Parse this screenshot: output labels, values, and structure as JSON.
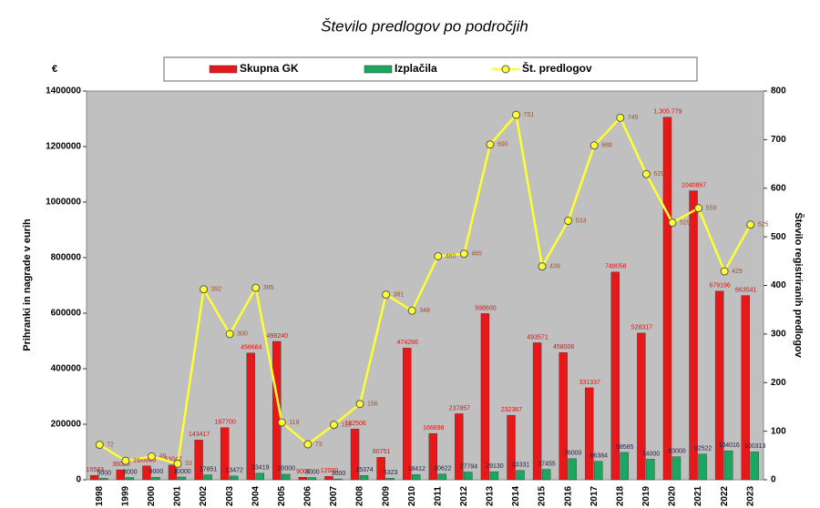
{
  "chart_data": {
    "type": "bar",
    "title": "Število predlogov po področjih",
    "y_unit": "€",
    "ylabel": "Prihranki in nagrade v eurih",
    "y2label": "Število registriranih predlogov",
    "categories": [
      "1998",
      "1999",
      "2000",
      "2001",
      "2002",
      "2003",
      "2004",
      "2005",
      "2006",
      "2007",
      "2008",
      "2009",
      "2010",
      "2011",
      "2012",
      "2013",
      "2014",
      "2015",
      "2016",
      "2017",
      "2018",
      "2019",
      "2020",
      "2021",
      "2022",
      "2023"
    ],
    "series": [
      {
        "name": "Skupna GK",
        "color": "#e81818",
        "axis": "y",
        "values": [
          15583,
          36000,
          50000,
          53047,
          143417,
          187700,
          456684,
          498240,
          9000,
          12000,
          182506,
          80751,
          474266,
          166698,
          237857,
          598600,
          232367,
          493571,
          458006,
          331337,
          748058,
          528317,
          1305779,
          1040867,
          679196,
          663541
        ],
        "value_labels": [
          "15583",
          "36000",
          "50000",
          "53047",
          "143417",
          "187700",
          "456684",
          "498240",
          "9000",
          "12000",
          "182506",
          "80751",
          "474266",
          "166698",
          "237857",
          "598600",
          "232367",
          "493571",
          "458006",
          "331337",
          "748058",
          "528317",
          "1.305.779",
          "1040867",
          "679196",
          "663541"
        ]
      },
      {
        "name": "Izplačila",
        "color": "#1aa860",
        "axis": "y",
        "values": [
          5000,
          8000,
          9000,
          10000,
          17851,
          13472,
          23419,
          20000,
          8000,
          3000,
          15374,
          5323,
          18412,
          20622,
          27794,
          29130,
          33331,
          37455,
          76000,
          66384,
          98585,
          74000,
          83000,
          92522,
          104016,
          100313
        ]
      },
      {
        "name": "Št. predlogov",
        "color": "#ffff33",
        "axis": "y2",
        "type": "line",
        "values": [
          72,
          39,
          48,
          33,
          392,
          300,
          395,
          118,
          73,
          113,
          156,
          381,
          348,
          460,
          465,
          690,
          751,
          439,
          533,
          688,
          745,
          629,
          529,
          559,
          429,
          525
        ]
      }
    ],
    "ylim": [
      0,
      1400000
    ],
    "yticks": [
      0,
      200000,
      400000,
      600000,
      800000,
      1000000,
      1200000,
      1400000
    ],
    "y2lim": [
      0,
      800
    ],
    "y2ticks": [
      0,
      100,
      200,
      300,
      400,
      500,
      600,
      700,
      800
    ],
    "plot_background": "#c0c0c0"
  }
}
